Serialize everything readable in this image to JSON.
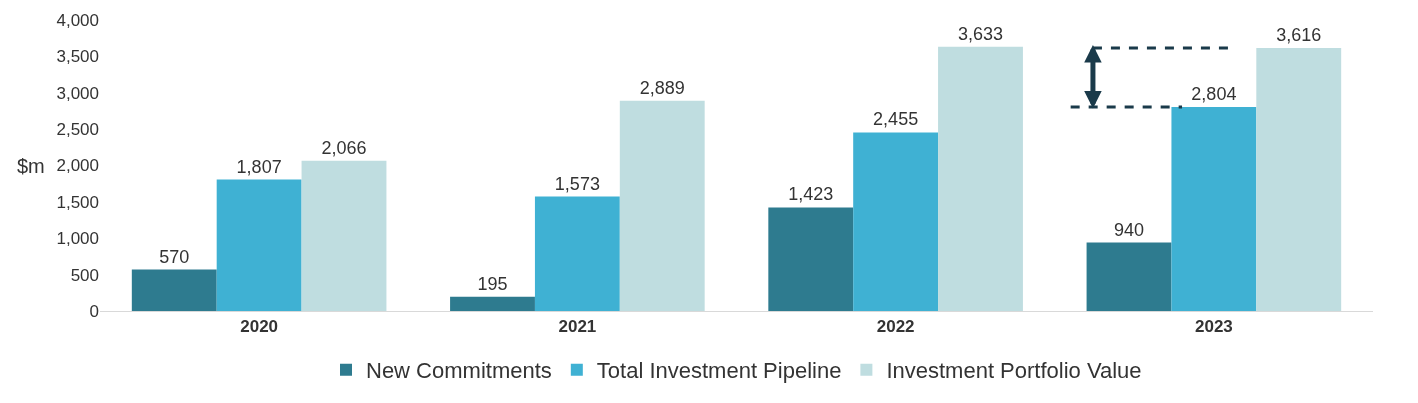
{
  "chart_data": {
    "type": "bar",
    "ylabel": "$m",
    "categories": [
      "2020",
      "2021",
      "2022",
      "2023"
    ],
    "series": [
      {
        "name": "New Commitments",
        "color": "#2e7b8f",
        "values": [
          570,
          195,
          1423,
          940
        ],
        "value_labels": [
          "570",
          "195",
          "1,423",
          "940"
        ]
      },
      {
        "name": "Total Investment Pipeline",
        "color": "#3fb1d3",
        "values": [
          1807,
          1573,
          2455,
          2804
        ],
        "value_labels": [
          "1,807",
          "1,573",
          "2,455",
          "2,804"
        ]
      },
      {
        "name": "Investment Portfolio Value",
        "color": "#bfdde0",
        "values": [
          2066,
          2889,
          3633,
          3616
        ],
        "value_labels": [
          "2,066",
          "2,889",
          "3,633",
          "3,616"
        ]
      }
    ],
    "ylim": [
      0,
      4000
    ],
    "yticks": [
      0,
      500,
      {
        "value": 1000,
        "label": "1,000"
      },
      {
        "value": 1500,
        "label": "1,500"
      },
      {
        "value": 2000,
        "label": "2,000"
      },
      {
        "value": 2500,
        "label": "2,500"
      },
      {
        "value": 3000,
        "label": "3,000"
      },
      {
        "value": 3500,
        "label": "3,500"
      },
      {
        "value": 4000,
        "label": "4,000"
      }
    ],
    "ref_lines": [
      {
        "axis": "y",
        "value": 3616,
        "color": "#1a3a4a",
        "line_style": "dashed"
      },
      {
        "axis": "y",
        "value": 2804,
        "color": "#1a3a4a",
        "line_style": "dashed"
      }
    ],
    "legend": "bottom"
  }
}
